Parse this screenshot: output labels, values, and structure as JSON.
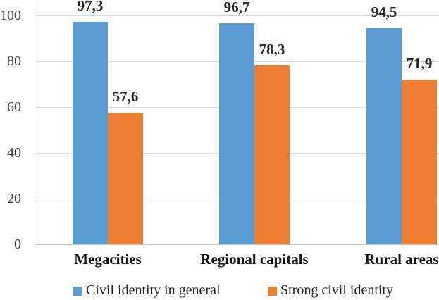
{
  "chart_data": {
    "type": "bar",
    "title": "",
    "xlabel": "",
    "ylabel": "",
    "categories": [
      "Megacities",
      "Regional capitals",
      "Rural areas"
    ],
    "series": [
      {
        "name": "Civil identity in general",
        "color": "#5B9BD5",
        "values": [
          97.3,
          96.7,
          94.5
        ],
        "value_labels": [
          "97,3",
          "96,7",
          "94,5"
        ]
      },
      {
        "name": "Strong civil identity",
        "color": "#ED7D31",
        "values": [
          57.6,
          78.3,
          71.9
        ],
        "value_labels": [
          "57,6",
          "78,3",
          "71,9"
        ]
      }
    ],
    "ylim": [
      0,
      100
    ],
    "yticks": [
      0,
      20,
      40,
      60,
      80,
      100
    ],
    "grid": "horizontal",
    "legend_position": "bottom"
  },
  "colors": {
    "series_blue": "#5B9BD5",
    "series_orange": "#ED7D31",
    "gridline": "#d9d9d9",
    "axis_line": "#bfbfbf",
    "tick_text": "#3d3d3d",
    "label_text": "#262626"
  }
}
